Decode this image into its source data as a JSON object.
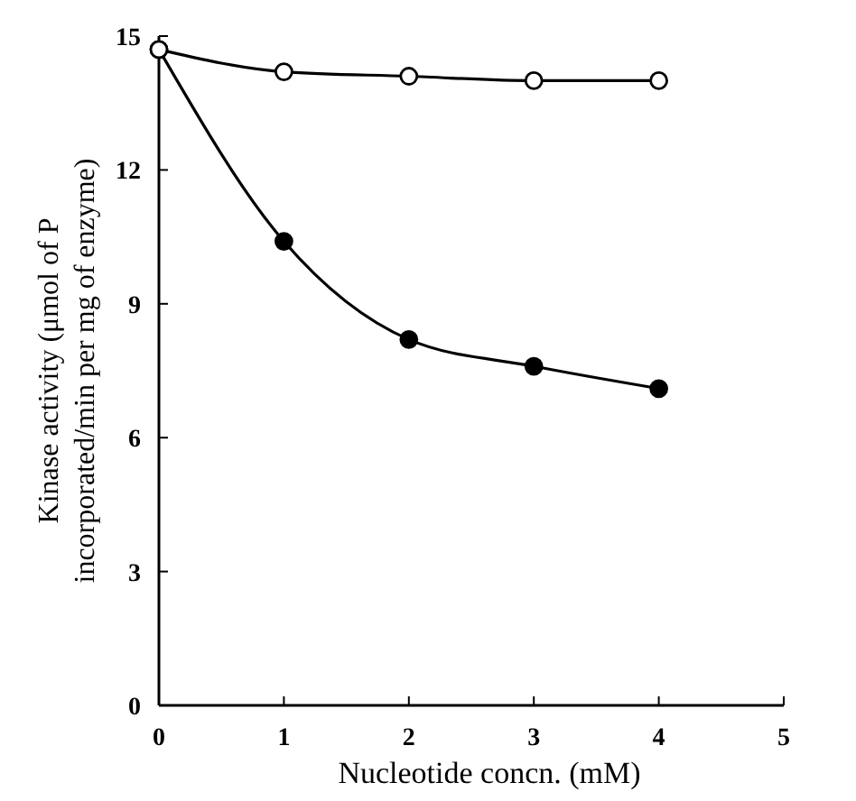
{
  "chart_data": {
    "type": "line",
    "xlabel": "Nucleotide concn. (mM)",
    "ylabel": "Kinase activity (μmol of P incorporated/min per mg of enzyme)",
    "xlim": [
      0,
      5
    ],
    "xticks": [
      0,
      1,
      2,
      3,
      4,
      5
    ],
    "ylim": [
      0,
      15
    ],
    "yticks": [
      0,
      3,
      6,
      9,
      12,
      15
    ],
    "marker": "circle",
    "x": [
      0,
      1,
      2,
      3,
      4
    ],
    "series": [
      {
        "color": "#000000",
        "values": [
          14.7,
          10.4,
          8.2,
          7.6,
          7.1
        ]
      },
      {
        "color": "#000000",
        "values": [
          14.7,
          14.2,
          14.1,
          14.0,
          14.0
        ]
      }
    ]
  }
}
